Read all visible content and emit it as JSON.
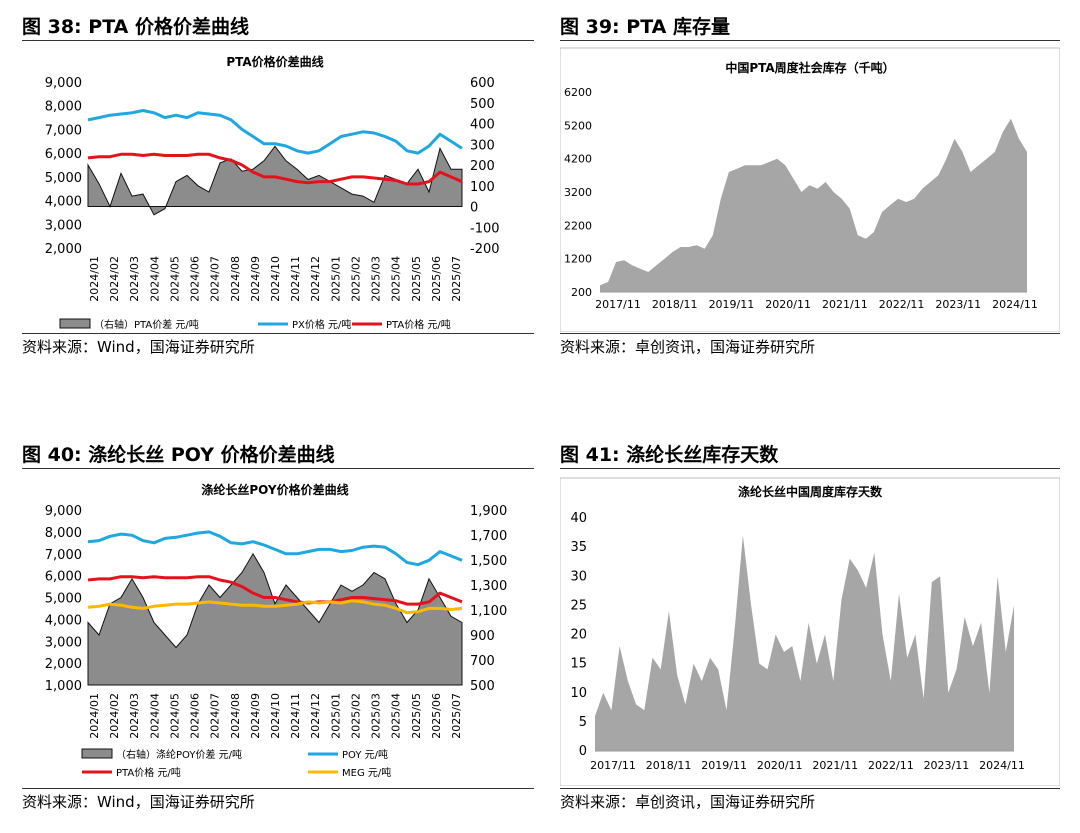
{
  "panels": [
    {
      "title": "图 38:  PTA 价格价差曲线",
      "source": "资料来源：Wind，国海证券研究所"
    },
    {
      "title": "图 39:  PTA 库存量",
      "source": "资料来源：卓创资讯，国海证券研究所"
    },
    {
      "title": "图 40:  涤纶长丝 POY 价格价差曲线",
      "source": "资料来源：Wind，国海证券研究所"
    },
    {
      "title": "图 41:  涤纶长丝库存天数",
      "source": "资料来源：卓创资讯，国海证券研究所"
    }
  ],
  "chart_data": [
    {
      "type": "line",
      "title": "PTA价格价差曲线",
      "x_ticks": [
        "2024/01",
        "2024/02",
        "2024/03",
        "2024/04",
        "2024/05",
        "2024/06",
        "2024/07",
        "2024/08",
        "2024/09",
        "2024/10",
        "2024/11",
        "2024/12",
        "2025/01",
        "2025/02",
        "2025/03",
        "2025/04",
        "2025/05",
        "2025/06",
        "2025/07"
      ],
      "ylim": [
        2000,
        9000
      ],
      "y_ticks": [
        2000,
        3000,
        4000,
        5000,
        6000,
        7000,
        8000,
        9000
      ],
      "y2lim": [
        -200,
        600
      ],
      "y2_ticks": [
        -200,
        -100,
        0,
        100,
        200,
        300,
        400,
        500,
        600
      ],
      "legend_position": "bottom",
      "series": [
        {
          "name": "（右轴）PTA价差  元/吨",
          "axis": "right",
          "kind": "area",
          "color": "#808080",
          "values": [
            200,
            110,
            0,
            160,
            50,
            60,
            -40,
            -10,
            120,
            150,
            100,
            70,
            210,
            230,
            170,
            180,
            220,
            290,
            220,
            180,
            130,
            150,
            120,
            90,
            60,
            50,
            20,
            150,
            130,
            110,
            180,
            70,
            280,
            180,
            180
          ]
        },
        {
          "name": "PX价格  元/吨",
          "axis": "left",
          "kind": "line",
          "color": "#1fa7e1",
          "values": [
            7400,
            7500,
            7600,
            7650,
            7700,
            7800,
            7700,
            7500,
            7600,
            7500,
            7700,
            7650,
            7600,
            7400,
            7000,
            6700,
            6400,
            6400,
            6300,
            6100,
            6000,
            6100,
            6400,
            6700,
            6800,
            6900,
            6850,
            6700,
            6500,
            6100,
            6000,
            6300,
            6800,
            6500,
            6200
          ]
        },
        {
          "name": "PTA价格  元/吨",
          "axis": "left",
          "kind": "line",
          "color": "#e3131b",
          "values": [
            5800,
            5850,
            5850,
            5950,
            5950,
            5900,
            5950,
            5900,
            5900,
            5900,
            5950,
            5950,
            5800,
            5700,
            5500,
            5200,
            5000,
            5000,
            4900,
            4800,
            4750,
            4800,
            4800,
            4900,
            5000,
            5000,
            4950,
            4900,
            4850,
            4700,
            4700,
            4800,
            5200,
            5000,
            4800
          ]
        }
      ]
    },
    {
      "type": "area",
      "title": "中国PTA周度社会库存（千吨）",
      "x_ticks": [
        "2017/11",
        "2018/11",
        "2019/11",
        "2020/11",
        "2021/11",
        "2022/11",
        "2023/11",
        "2024/11"
      ],
      "ylim": [
        200,
        6200
      ],
      "y_ticks": [
        200,
        1200,
        2200,
        3200,
        4200,
        5200,
        6200
      ],
      "series": [
        {
          "name": "中国PTA周度社会库存",
          "color": "#a6a6a6",
          "values": [
            400,
            500,
            1100,
            1150,
            1000,
            900,
            800,
            1000,
            1200,
            1400,
            1550,
            1550,
            1600,
            1500,
            1900,
            3000,
            3800,
            3900,
            4000,
            4000,
            4000,
            4100,
            4200,
            4000,
            3600,
            3200,
            3400,
            3300,
            3500,
            3200,
            3000,
            2700,
            1900,
            1800,
            2000,
            2600,
            2800,
            3000,
            2900,
            3000,
            3300,
            3500,
            3700,
            4200,
            4800,
            4400,
            3800,
            4000,
            4200,
            4400,
            5000,
            5400,
            4800,
            4400
          ]
        }
      ]
    },
    {
      "type": "line",
      "title": "涤纶长丝POY价格价差曲线",
      "x_ticks": [
        "2024/01",
        "2024/02",
        "2024/03",
        "2024/04",
        "2024/05",
        "2024/06",
        "2024/07",
        "2024/08",
        "2024/09",
        "2024/10",
        "2024/11",
        "2024/12",
        "2025/01",
        "2025/02",
        "2025/03",
        "2025/04",
        "2025/05",
        "2025/06",
        "2025/07"
      ],
      "ylim": [
        1000,
        9000
      ],
      "y_ticks": [
        1000,
        2000,
        3000,
        4000,
        5000,
        6000,
        7000,
        8000,
        9000
      ],
      "y2lim": [
        500,
        1900
      ],
      "y2_ticks": [
        500,
        700,
        900,
        1100,
        1300,
        1500,
        1700,
        1900
      ],
      "legend_position": "bottom",
      "series": [
        {
          "name": "（右轴）涤纶POY价差  元/吨",
          "axis": "right",
          "kind": "area",
          "color": "#808080",
          "values": [
            1000,
            900,
            1150,
            1200,
            1350,
            1200,
            1000,
            900,
            800,
            900,
            1150,
            1300,
            1200,
            1300,
            1400,
            1550,
            1400,
            1150,
            1300,
            1200,
            1100,
            1000,
            1150,
            1300,
            1250,
            1300,
            1400,
            1350,
            1150,
            1000,
            1100,
            1350,
            1200,
            1050,
            1000
          ]
        },
        {
          "name": "POY  元/吨",
          "axis": "left",
          "kind": "line",
          "color": "#1fa7e1",
          "values": [
            7550,
            7600,
            7800,
            7900,
            7850,
            7600,
            7500,
            7700,
            7750,
            7850,
            7950,
            8000,
            7800,
            7500,
            7450,
            7550,
            7400,
            7200,
            7000,
            7000,
            7100,
            7200,
            7200,
            7100,
            7150,
            7300,
            7350,
            7300,
            7000,
            6600,
            6500,
            6700,
            7100,
            6900,
            6700
          ]
        },
        {
          "name": "PTA价格  元/吨",
          "axis": "left",
          "kind": "line",
          "color": "#e3131b",
          "values": [
            5800,
            5850,
            5850,
            5950,
            5950,
            5900,
            5950,
            5900,
            5900,
            5900,
            5950,
            5950,
            5800,
            5700,
            5500,
            5200,
            5000,
            5000,
            4900,
            4800,
            4750,
            4800,
            4800,
            4900,
            5000,
            5000,
            4950,
            4900,
            4850,
            4700,
            4700,
            4800,
            5200,
            5000,
            4800
          ]
        },
        {
          "name": "MEG  元/吨",
          "axis": "left",
          "kind": "line",
          "color": "#ffb700",
          "values": [
            4550,
            4600,
            4700,
            4650,
            4550,
            4500,
            4600,
            4650,
            4700,
            4700,
            4750,
            4800,
            4750,
            4700,
            4650,
            4650,
            4600,
            4600,
            4650,
            4700,
            4800,
            4750,
            4800,
            4750,
            4850,
            4800,
            4700,
            4650,
            4500,
            4300,
            4350,
            4500,
            4500,
            4450,
            4500
          ]
        }
      ]
    },
    {
      "type": "area",
      "title": "涤纶长丝中国周度库存天数",
      "x_ticks": [
        "2017/11",
        "2018/11",
        "2019/11",
        "2020/11",
        "2021/11",
        "2022/11",
        "2023/11",
        "2024/11"
      ],
      "ylim": [
        0,
        40
      ],
      "y_ticks": [
        0,
        5,
        10,
        15,
        20,
        25,
        30,
        35,
        40
      ],
      "series": [
        {
          "name": "涤纶长丝中国周度库存天数",
          "color": "#a6a6a6",
          "values": [
            6,
            10,
            7,
            18,
            12,
            8,
            7,
            16,
            14,
            24,
            13,
            8,
            15,
            12,
            16,
            14,
            7,
            21,
            37,
            25,
            15,
            14,
            20,
            17,
            18,
            12,
            22,
            15,
            20,
            12,
            26,
            33,
            31,
            28,
            34,
            20,
            12,
            27,
            16,
            20,
            9,
            29,
            30,
            10,
            14,
            23,
            18,
            22,
            10,
            30,
            17,
            25
          ]
        }
      ]
    }
  ]
}
